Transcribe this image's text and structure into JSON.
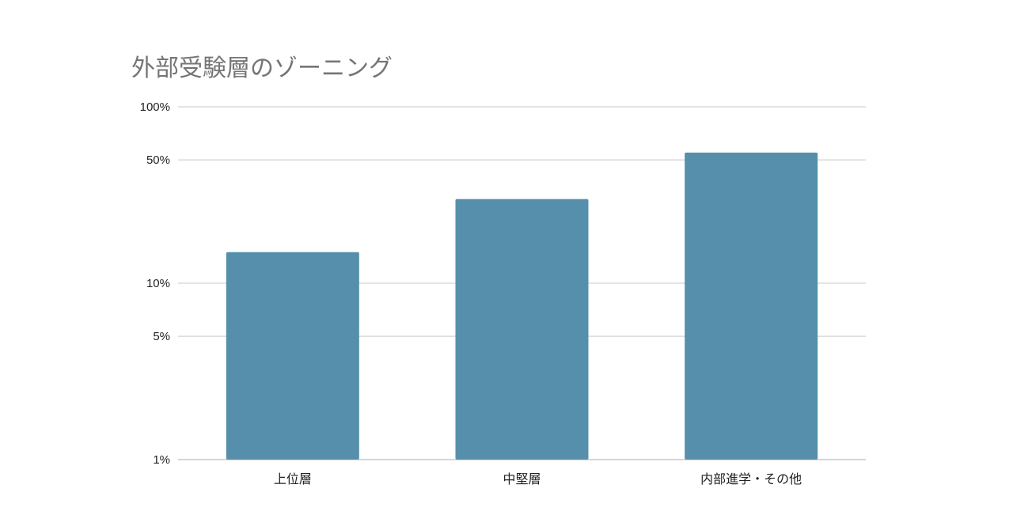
{
  "chart_data": {
    "type": "bar",
    "title": "外部受験層のゾーニング",
    "xlabel": "",
    "ylabel": "",
    "yscale": "log",
    "ylim": [
      1,
      100
    ],
    "yticks": [
      1,
      5,
      10,
      50,
      100
    ],
    "ytick_labels": [
      "1%",
      "5%",
      "10%",
      "50%",
      "100%"
    ],
    "grid": true,
    "legend": "none",
    "categories": [
      "上位層",
      "中堅層",
      "内部進学・その他"
    ],
    "values": [
      15,
      30,
      55
    ],
    "bar_color": "#568fab"
  }
}
